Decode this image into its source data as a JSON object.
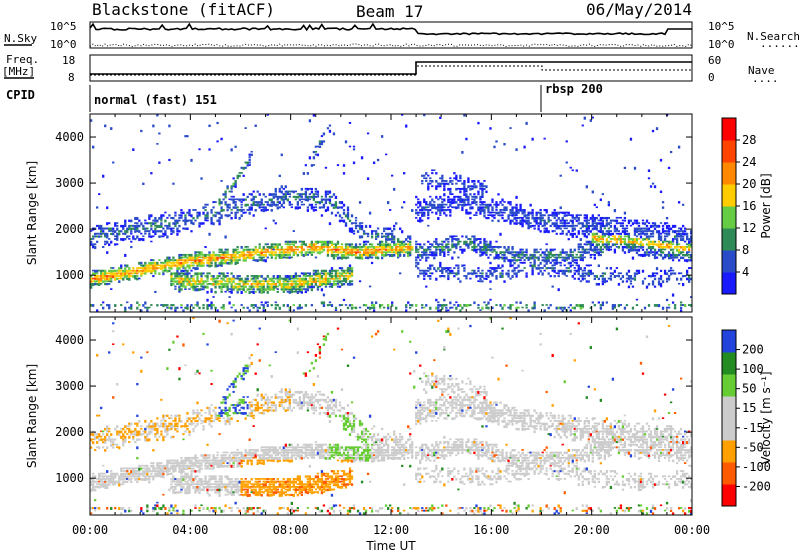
{
  "header": {
    "station": "Blackstone (fitACF)",
    "beam": "Beam 17",
    "date": "06/May/2014"
  },
  "noise_panel": {
    "left_label": "N.Sky",
    "right_label": "N.Search",
    "right_legend": "......",
    "left_ticks": [
      "10^5",
      "10^0"
    ],
    "right_ticks": [
      "10^5",
      "10^0"
    ]
  },
  "freq_panel": {
    "left_label_1": "Freq.",
    "left_label_2": "[MHz]",
    "right_label": "Nave",
    "right_legend": "....",
    "left_ticks": [
      "18",
      "8"
    ],
    "right_ticks": [
      "60",
      "0"
    ]
  },
  "cpid_panel": {
    "label": "CPID",
    "modes": [
      {
        "name": "normal (fast) 151",
        "start_hour": 0
      },
      {
        "name": "rbsp 200",
        "start_hour": 18
      }
    ]
  },
  "colors": {
    "power": [
      "#1a1aff",
      "#2a4cc8",
      "#2e8b57",
      "#66cc44",
      "#ffcc00",
      "#ff8800",
      "#ff4400",
      "#ff0000"
    ],
    "velocity": [
      "#ff0000",
      "#ff5a00",
      "#ffa000",
      "#cccccc",
      "#cccccc",
      "#66cc33",
      "#228b22",
      "#2244dd"
    ]
  },
  "chart_data": [
    {
      "type": "heatmap",
      "parameter": "power",
      "ylabel": "Slant Range [km]",
      "xlabel": "",
      "xlim": [
        0,
        24
      ],
      "ylim": [
        200,
        4500
      ],
      "y_ticks": [
        1000,
        2000,
        3000,
        4000
      ],
      "colorbar_label": "Power [dB]",
      "colorbar_ticks": [
        "4",
        "8",
        "12",
        "16",
        "20",
        "24",
        "28"
      ]
    },
    {
      "type": "heatmap",
      "parameter": "velocity",
      "ylabel": "Slant Range [km]",
      "xlabel": "Time UT",
      "xlim": [
        0,
        24
      ],
      "ylim": [
        200,
        4500
      ],
      "y_ticks": [
        1000,
        2000,
        3000,
        4000
      ],
      "x_ticks": [
        "00:00",
        "04:00",
        "08:00",
        "12:00",
        "16:00",
        "20:00",
        "00:00"
      ],
      "colorbar_label": "Velocity [m s⁻¹]",
      "colorbar_ticks": [
        "-200",
        "-100",
        "-50",
        "-15",
        "15",
        "50",
        "100",
        "200"
      ]
    }
  ]
}
